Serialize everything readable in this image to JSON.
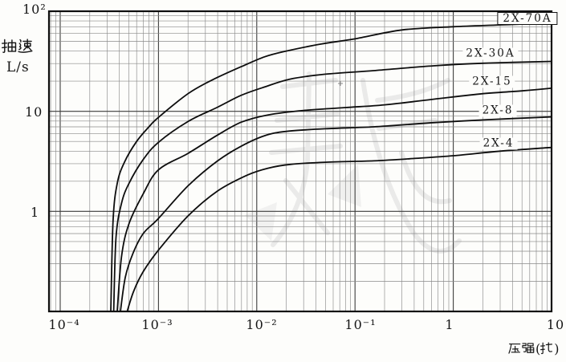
{
  "y_axis": {
    "title": "抽速",
    "unit": "L/s",
    "tick_top": "10²",
    "tick_mid": "10",
    "tick_low": "1"
  },
  "x_axis": {
    "title": "压强(托)",
    "ticks": [
      "10⁻⁴",
      "10⁻³",
      "10⁻²",
      "10⁻¹",
      "1",
      "10"
    ]
  },
  "curve_labels": [
    "2X-70A",
    "2X-30A",
    "2X-15",
    "2X-8",
    "2X-4"
  ],
  "chart_data": {
    "type": "line",
    "title": "",
    "xlabel": "压强(托)",
    "ylabel": "抽速 L/s",
    "x_scale": "log",
    "y_scale": "log",
    "xlim": [
      0.0001,
      10
    ],
    "ylim": [
      0.1,
      100
    ],
    "grid": "log major+minor, both axes",
    "legend_position": "labels at right side of curves",
    "series": [
      {
        "name": "2X-70A",
        "points": [
          [
            0.000327,
            0.1
          ],
          [
            0.000345,
            0.8
          ],
          [
            0.00038,
            1.9
          ],
          [
            0.00045,
            3.1
          ],
          [
            0.0006,
            5.0
          ],
          [
            0.0008,
            7.0
          ],
          [
            0.001,
            8.7
          ],
          [
            0.002,
            15
          ],
          [
            0.0035,
            20.5
          ],
          [
            0.007,
            28
          ],
          [
            0.012,
            35
          ],
          [
            0.02,
            40
          ],
          [
            0.045,
            47
          ],
          [
            0.1,
            53
          ],
          [
            0.3,
            65
          ],
          [
            1,
            70
          ],
          [
            3,
            73
          ],
          [
            10,
            76
          ]
        ]
      },
      {
        "name": "2X-30A",
        "points": [
          [
            0.00035,
            0.1
          ],
          [
            0.00037,
            0.55
          ],
          [
            0.00042,
            1.2
          ],
          [
            0.0005,
            1.9
          ],
          [
            0.0007,
            3.3
          ],
          [
            0.001,
            4.9
          ],
          [
            0.002,
            7.9
          ],
          [
            0.004,
            11
          ],
          [
            0.007,
            14.5
          ],
          [
            0.012,
            17.5
          ],
          [
            0.022,
            21
          ],
          [
            0.05,
            23.5
          ],
          [
            0.155,
            25.5
          ],
          [
            0.63,
            28.5
          ],
          [
            2,
            30.2
          ],
          [
            10,
            31.5
          ]
        ]
      },
      {
        "name": "2X-15",
        "points": [
          [
            0.00038,
            0.1
          ],
          [
            0.00042,
            0.35
          ],
          [
            0.0005,
            0.75
          ],
          [
            0.0007,
            1.5
          ],
          [
            0.001,
            2.6
          ],
          [
            0.002,
            3.8
          ],
          [
            0.004,
            5.8
          ],
          [
            0.007,
            7.8
          ],
          [
            0.013,
            9.2
          ],
          [
            0.03,
            10.2
          ],
          [
            0.08,
            10.9
          ],
          [
            0.2,
            11.6
          ],
          [
            0.63,
            13.2
          ],
          [
            2,
            15
          ],
          [
            5,
            16
          ],
          [
            10,
            17
          ]
        ]
      },
      {
        "name": "2X-8",
        "points": [
          [
            0.00041,
            0.1
          ],
          [
            0.00046,
            0.22
          ],
          [
            0.00055,
            0.38
          ],
          [
            0.0007,
            0.6
          ],
          [
            0.001,
            0.85
          ],
          [
            0.002,
            1.8
          ],
          [
            0.004,
            3.2
          ],
          [
            0.007,
            4.5
          ],
          [
            0.012,
            5.7
          ],
          [
            0.02,
            6.3
          ],
          [
            0.05,
            6.7
          ],
          [
            0.155,
            7.0
          ],
          [
            0.63,
            7.7
          ],
          [
            2,
            8.2
          ],
          [
            10,
            8.8
          ]
        ]
      },
      {
        "name": "2X-4",
        "points": [
          [
            0.00048,
            0.1
          ],
          [
            0.00056,
            0.16
          ],
          [
            0.0007,
            0.25
          ],
          [
            0.001,
            0.41
          ],
          [
            0.002,
            0.9
          ],
          [
            0.004,
            1.6
          ],
          [
            0.008,
            2.3
          ],
          [
            0.013,
            2.7
          ],
          [
            0.022,
            2.95
          ],
          [
            0.05,
            3.1
          ],
          [
            0.155,
            3.2
          ],
          [
            0.4,
            3.38
          ],
          [
            1,
            3.6
          ],
          [
            3,
            4.0
          ],
          [
            10,
            4.35
          ]
        ]
      }
    ]
  }
}
